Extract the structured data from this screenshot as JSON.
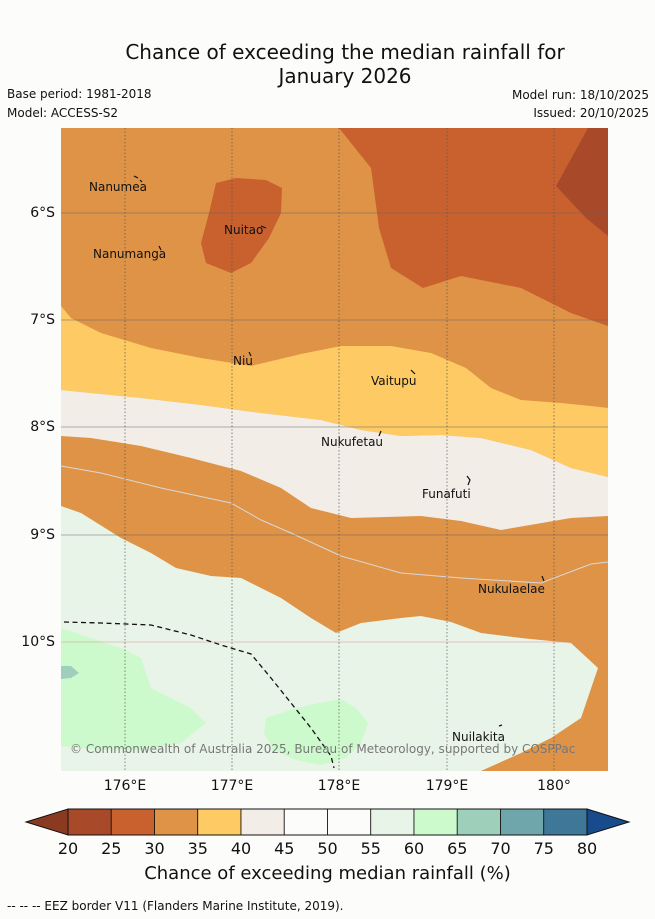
{
  "header": {
    "title_line1": "Chance of exceeding the median rainfall for",
    "title_line2": "January 2026",
    "base_period": "Base period: 1981-2018",
    "model": "Model: ACCESS-S2",
    "model_run": "Model run: 18/10/2025",
    "issued": "Issued: 20/10/2025"
  },
  "map": {
    "x_ticks": [
      "176°E",
      "177°E",
      "178°E",
      "179°E",
      "180°"
    ],
    "y_ticks": [
      "6°S",
      "7°S",
      "8°S",
      "9°S",
      "10°S"
    ],
    "places": [
      "Nanumea",
      "Nuitao",
      "Nanumanga",
      "Niu",
      "Vaitupu",
      "Nukufetau",
      "Funafuti",
      "Nukulaelae",
      "Nuilakita"
    ],
    "copyright": "© Commonwealth of Australia 2025, Bureau of Meteorology, supported by COSPPac"
  },
  "colorbar": {
    "ticks": [
      "20",
      "25",
      "30",
      "35",
      "40",
      "45",
      "50",
      "55",
      "60",
      "65",
      "70",
      "75",
      "80"
    ],
    "colors": [
      "#a84a2a",
      "#c9612f",
      "#df9346",
      "#fdca64",
      "#f2ede7",
      "#fcfdfb",
      "#fcfdfb",
      "#e9f4e8",
      "#cdfacd",
      "#9dcfbb",
      "#6ea6ab",
      "#3f7798"
    ],
    "low_color": "#8b3a22",
    "high_color": "#174b8c",
    "title": "Chance of exceeding median rainfall (%)"
  },
  "legend": {
    "eez": "--  --  -- EEZ border V11 (Flanders Marine Institute, 2019)."
  }
}
